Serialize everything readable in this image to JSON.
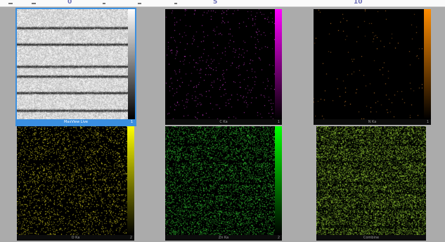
{
  "ruler": {
    "ticks": [
      "0",
      "5",
      "10"
    ]
  },
  "panels": [
    {
      "id": "maxview",
      "label": "MaxView Live",
      "scale_number": "1",
      "selected": true,
      "kind": "sem",
      "bar_top": "#ffffff",
      "bar_bottom": "#000000"
    },
    {
      "id": "c",
      "label": "C Ka",
      "scale_number": "1",
      "selected": false,
      "kind": "map",
      "map_color": "#e040e0",
      "density": 0.018,
      "bar_top": "#ff00ff",
      "bar_bottom": "#000000"
    },
    {
      "id": "n",
      "label": "N Ka",
      "scale_number": "1",
      "selected": false,
      "kind": "map",
      "map_color": "#e08a30",
      "density": 0.006,
      "bar_top": "#ff8c00",
      "bar_bottom": "#000000"
    },
    {
      "id": "o",
      "label": "O Ka",
      "scale_number": "2",
      "selected": false,
      "kind": "map",
      "map_color": "#d8d020",
      "density": 0.12,
      "bar_top": "#ffff00",
      "bar_bottom": "#000000"
    },
    {
      "id": "zn",
      "label": "Zn Ka",
      "scale_number": "2",
      "selected": false,
      "kind": "map",
      "map_color": "#30c030",
      "density": 0.22,
      "bar_top": "#00ff00",
      "bar_bottom": "#000000"
    },
    {
      "id": "combine",
      "label": "Combine",
      "scale_number": "",
      "selected": false,
      "kind": "combine",
      "map_color": "#8ec030",
      "density": 0.32,
      "bar_top": "",
      "bar_bottom": ""
    }
  ]
}
